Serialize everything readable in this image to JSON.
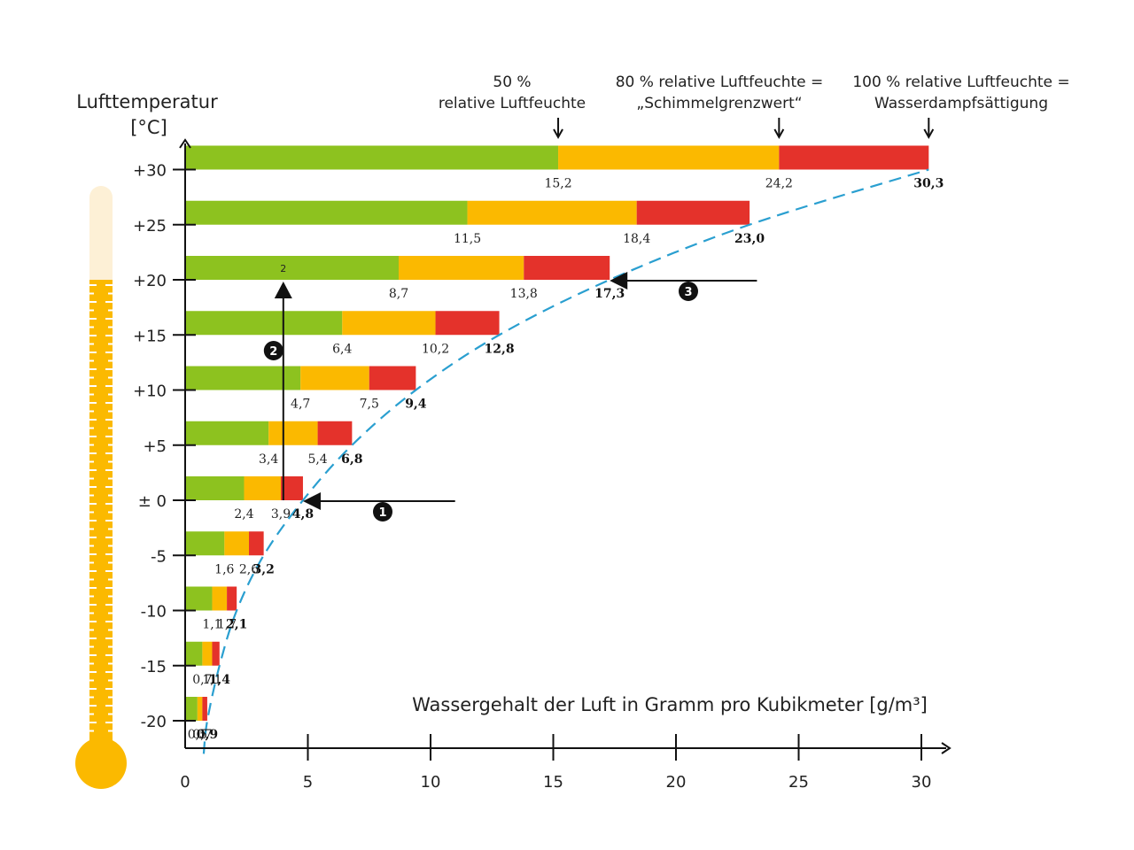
{
  "chart_data": {
    "type": "bar",
    "orientation": "horizontal-stacked",
    "y_axis_title": "Lufttemperatur",
    "y_axis_unit": "[°C]",
    "x_axis_title": "Wassergehalt der Luft in Gramm pro Kubikmeter [g/m³]",
    "xlim": [
      0,
      30
    ],
    "ylim": [
      -22.5,
      32
    ],
    "x_ticks": [
      {
        "value": 0,
        "label": "0"
      },
      {
        "value": 5,
        "label": "5"
      },
      {
        "value": 10,
        "label": "10"
      },
      {
        "value": 15,
        "label": "15"
      },
      {
        "value": 20,
        "label": "20"
      },
      {
        "value": 25,
        "label": "25"
      },
      {
        "value": 30,
        "label": "30"
      }
    ],
    "legend_annotations": [
      {
        "value": 15.2,
        "lines": [
          "50 %",
          "relative Luftfeuchte"
        ]
      },
      {
        "value": 24.2,
        "lines": [
          "80 % relative Luftfeuchte =",
          "„Schimmelgrenzwert“"
        ]
      },
      {
        "value": 30.3,
        "lines": [
          "100 % relative Luftfeuchte =",
          "Wasserdampfsättigung"
        ]
      }
    ],
    "colors": {
      "rh50": "#8dc21f",
      "rh80": "#fbb900",
      "rh100": "#e4322b",
      "curve": "#2a9fd0",
      "thermometer": "#fbb900",
      "thermometer_top": "#fdf0d6"
    },
    "rows": [
      {
        "temp": 30,
        "label": "+30",
        "rh50": 15.2,
        "rh80": 24.2,
        "rh100": 30.3,
        "rh50_label": "15,2",
        "rh80_label": "24,2",
        "rh100_label": "30,3"
      },
      {
        "temp": 25,
        "label": "+25",
        "rh50": 11.5,
        "rh80": 18.4,
        "rh100": 23.0,
        "rh50_label": "11,5",
        "rh80_label": "18,4",
        "rh100_label": "23,0"
      },
      {
        "temp": 20,
        "label": "+20",
        "rh50": 8.7,
        "rh80": 13.8,
        "rh100": 17.3,
        "rh50_label": "8,7",
        "rh80_label": "13,8",
        "rh100_label": "17,3"
      },
      {
        "temp": 15,
        "label": "+15",
        "rh50": 6.4,
        "rh80": 10.2,
        "rh100": 12.8,
        "rh50_label": "6,4",
        "rh80_label": "10,2",
        "rh100_label": "12,8"
      },
      {
        "temp": 10,
        "label": "+10",
        "rh50": 4.7,
        "rh80": 7.5,
        "rh100": 9.4,
        "rh50_label": "4,7",
        "rh80_label": "7,5",
        "rh100_label": "9,4"
      },
      {
        "temp": 5,
        "label": "+5",
        "rh50": 3.4,
        "rh80": 5.4,
        "rh100": 6.8,
        "rh50_label": "3,4",
        "rh80_label": "5,4",
        "rh100_label": "6,8"
      },
      {
        "temp": 0,
        "label": "± 0",
        "rh50": 2.4,
        "rh80": 3.9,
        "rh100": 4.8,
        "rh50_label": "2,4",
        "rh80_label": "3,9",
        "rh100_label": "4,8"
      },
      {
        "temp": -5,
        "label": "-5",
        "rh50": 1.6,
        "rh80": 2.6,
        "rh100": 3.2,
        "rh50_label": "1,6",
        "rh80_label": "2,6",
        "rh100_label": "3,2"
      },
      {
        "temp": -10,
        "label": "-10",
        "rh50": 1.1,
        "rh80": 1.7,
        "rh100": 2.1,
        "rh50_label": "1,1",
        "rh80_label": "1,7",
        "rh100_label": "2,1"
      },
      {
        "temp": -15,
        "label": "-15",
        "rh50": 0.7,
        "rh80": 1.1,
        "rh100": 1.4,
        "rh50_label": "0,7",
        "rh80_label": "1,1",
        "rh100_label": "1,4"
      },
      {
        "temp": -20,
        "label": "-20",
        "rh50": 0.5,
        "rh80": 0.7,
        "rh100": 0.9,
        "rh50_label": "0,5",
        "rh80_label": "0,7",
        "rh100_label": "0,9"
      }
    ],
    "steps": [
      {
        "number": "1",
        "kind": "horizontal-arrow",
        "temp": 0,
        "from_x": 11.0,
        "to_x": 4.8
      },
      {
        "number": "2",
        "kind": "vertical-arrow",
        "x": 4.0,
        "from_temp": 0,
        "to_temp": 20,
        "top_label": "2"
      },
      {
        "number": "3",
        "kind": "horizontal-arrow",
        "temp": 20,
        "from_x": 23.3,
        "to_x": 17.3
      }
    ]
  }
}
